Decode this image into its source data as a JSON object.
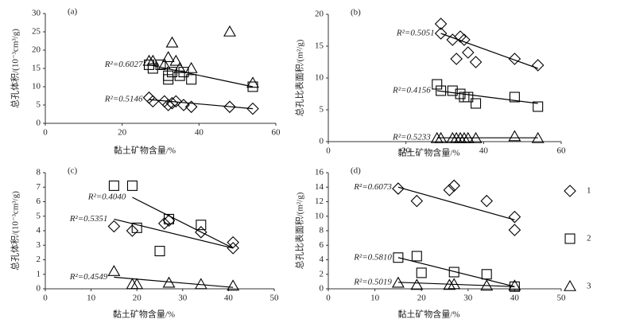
{
  "chart_data": [
    {
      "type": "scatter",
      "label": "(a)",
      "x_label": "黏土矿物含量/%",
      "y_label": "总孔体积/(10⁻³cm³/g)",
      "xlim": [
        0,
        60
      ],
      "xticks": [
        0,
        20,
        40,
        60
      ],
      "ylim": [
        0,
        30
      ],
      "yticks": [
        0,
        5,
        10,
        15,
        20,
        25,
        30
      ],
      "legend": false,
      "series": [
        {
          "name": "1",
          "marker": "diamond",
          "color": "#000000",
          "x": [
            27,
            28,
            31,
            32,
            33,
            34,
            36,
            38,
            48,
            54
          ],
          "values": [
            7,
            6,
            6,
            5,
            5.5,
            6,
            5,
            4.5,
            4.5,
            4
          ]
        },
        {
          "name": "2",
          "marker": "square",
          "color": "#000000",
          "x": [
            27,
            28,
            30,
            32,
            32,
            33,
            35,
            36,
            38,
            54
          ],
          "values": [
            16,
            15,
            16,
            13,
            12,
            14,
            13,
            14,
            12,
            10
          ]
        },
        {
          "name": "3",
          "marker": "triangle",
          "color": "#000000",
          "x": [
            27,
            28,
            31,
            32,
            33,
            34,
            35,
            38,
            48,
            54
          ],
          "values": [
            17,
            17,
            16,
            18,
            22,
            17,
            15,
            15,
            25,
            11
          ]
        }
      ],
      "trendlines": [
        {
          "label": "R²=0.5146",
          "x": [
            27,
            54
          ],
          "y": [
            6.5,
            4
          ]
        },
        {
          "label": "R²=0.6027",
          "x": [
            27,
            54
          ],
          "y": [
            16,
            10
          ]
        }
      ]
    },
    {
      "type": "scatter",
      "label": "(b)",
      "x_label": "黏土矿物含量/%",
      "y_label": "总孔比表面积/(m²/g)",
      "xlim": [
        0,
        60
      ],
      "xticks": [
        0,
        20,
        40,
        60
      ],
      "ylim": [
        0,
        20
      ],
      "yticks": [
        0,
        5,
        10,
        15,
        20
      ],
      "legend": false,
      "series": [
        {
          "name": "1",
          "marker": "diamond",
          "color": "#000000",
          "x": [
            29,
            29,
            32,
            33,
            34,
            35,
            36,
            38,
            48,
            54
          ],
          "values": [
            18.5,
            17,
            16,
            13,
            16.5,
            16,
            14,
            12.5,
            13,
            12
          ]
        },
        {
          "name": "2",
          "marker": "square",
          "color": "#000000",
          "x": [
            28,
            29,
            32,
            34,
            35,
            36,
            38,
            48,
            54
          ],
          "values": [
            9,
            8,
            8,
            7.5,
            7,
            7,
            6,
            7,
            5.5
          ]
        },
        {
          "name": "3",
          "marker": "triangle",
          "color": "#000000",
          "x": [
            28,
            29,
            32,
            33,
            34,
            35,
            36,
            38,
            48,
            54
          ],
          "values": [
            0.5,
            0.5,
            0.5,
            0.5,
            0.5,
            0.5,
            0.5,
            0.5,
            0.8,
            0.5
          ]
        }
      ],
      "trendlines": [
        {
          "label": "R²=0.5051",
          "x": [
            29,
            54
          ],
          "y": [
            17,
            11.5
          ]
        },
        {
          "label": "R²=0.4156",
          "x": [
            28,
            54
          ],
          "y": [
            8,
            6
          ]
        },
        {
          "label": "R²=0.5233",
          "x": [
            28,
            54
          ],
          "y": [
            0.6,
            0.6
          ]
        }
      ]
    },
    {
      "type": "scatter",
      "label": "(c)",
      "x_label": "黏土矿物含量/%",
      "y_label": "总孔体积/(10⁻³cm³/g)",
      "xlim": [
        0,
        50
      ],
      "xticks": [
        0,
        10,
        20,
        30,
        40,
        50
      ],
      "ylim": [
        0,
        8
      ],
      "yticks": [
        0,
        1,
        2,
        3,
        4,
        5,
        6,
        7,
        8
      ],
      "legend": false,
      "series": [
        {
          "name": "1",
          "marker": "diamond",
          "color": "#000000",
          "x": [
            15,
            19,
            26,
            27,
            34,
            41,
            41
          ],
          "values": [
            4.3,
            4.0,
            4.5,
            4.7,
            3.9,
            3.2,
            2.8
          ]
        },
        {
          "name": "2",
          "marker": "square",
          "color": "#000000",
          "x": [
            15,
            19,
            20,
            25,
            27,
            34
          ],
          "values": [
            7.1,
            7.1,
            4.2,
            2.6,
            4.8,
            4.4
          ]
        },
        {
          "name": "3",
          "marker": "triangle",
          "color": "#000000",
          "x": [
            15,
            19,
            20,
            27,
            34,
            41
          ],
          "values": [
            1.2,
            0.3,
            0.3,
            0.4,
            0.3,
            0.2
          ]
        }
      ],
      "trendlines": [
        {
          "label": "R²=0.5351",
          "x": [
            15,
            41
          ],
          "y": [
            4.8,
            2.8
          ]
        },
        {
          "label": "R²=0.4040",
          "x": [
            19,
            41
          ],
          "y": [
            6.3,
            2.8
          ]
        },
        {
          "label": "R²=0.4549",
          "x": [
            15,
            41
          ],
          "y": [
            0.8,
            0.1
          ]
        }
      ]
    },
    {
      "type": "scatter",
      "label": "(d)",
      "x_label": "黏土矿物含量/%",
      "y_label": "总孔比表面积/(m²/g)",
      "xlim": [
        0,
        50
      ],
      "xticks": [
        0,
        10,
        20,
        30,
        40,
        50
      ],
      "ylim": [
        0,
        16
      ],
      "yticks": [
        0,
        2,
        4,
        6,
        8,
        10,
        12,
        14,
        16
      ],
      "legend": "right",
      "series": [
        {
          "name": "1",
          "marker": "diamond",
          "color": "#000000",
          "x": [
            15,
            19,
            26,
            27,
            34,
            40,
            40
          ],
          "values": [
            13.8,
            12.1,
            13.6,
            14.2,
            12.1,
            9.9,
            8.1
          ]
        },
        {
          "name": "2",
          "marker": "square",
          "color": "#000000",
          "x": [
            15,
            19,
            20,
            27,
            34,
            40
          ],
          "values": [
            4.3,
            4.5,
            2.2,
            2.3,
            2,
            0.3
          ]
        },
        {
          "name": "3",
          "marker": "triangle",
          "color": "#000000",
          "x": [
            15,
            19,
            26,
            27,
            34,
            40
          ],
          "values": [
            0.8,
            0.5,
            0.5,
            0.6,
            0.4,
            0.4
          ]
        }
      ],
      "trendlines": [
        {
          "label": "R²=0.6073",
          "x": [
            15,
            40
          ],
          "y": [
            14,
            9.5
          ]
        },
        {
          "label": "R²=0.5810",
          "x": [
            15,
            40
          ],
          "y": [
            4.3,
            0.3
          ]
        },
        {
          "label": "R²=0.5019",
          "x": [
            15,
            40
          ],
          "y": [
            0.9,
            0.3
          ]
        }
      ]
    }
  ]
}
